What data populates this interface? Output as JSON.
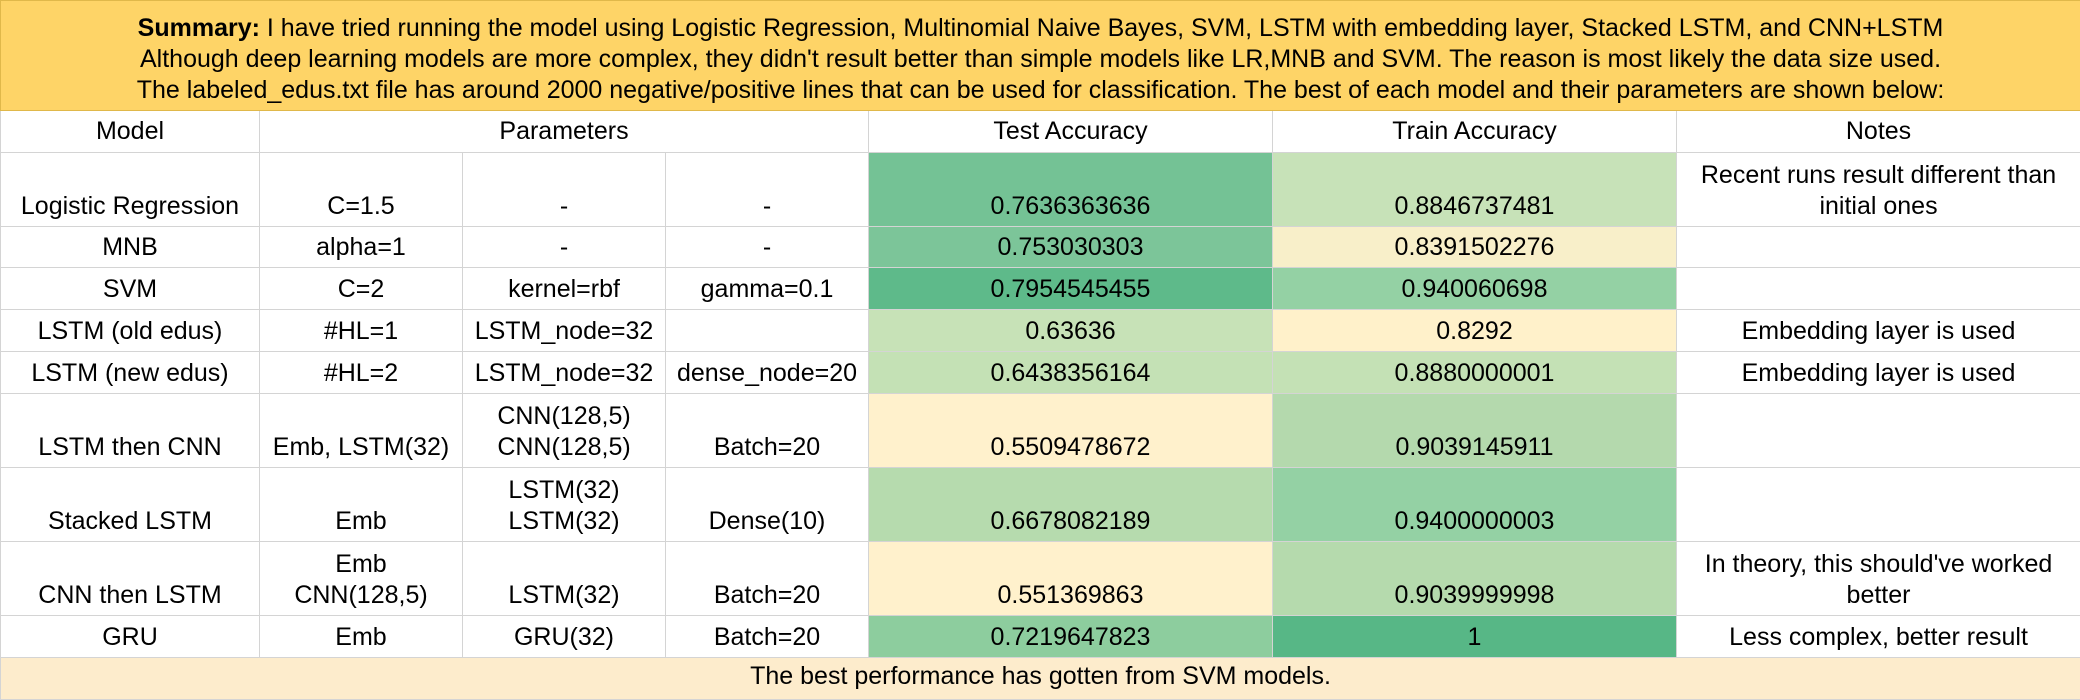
{
  "summary": {
    "label": "Summary:",
    "line1": "I have tried running the model using Logistic Regression, Multinomial Naive Bayes, SVM, LSTM with embedding layer, Stacked LSTM, and CNN+LSTM",
    "line2": "Although deep learning models are more complex, they didn't result better than simple models like LR,MNB and SVM. The reason is most likely the data size used.",
    "line3": "The labeled_edus.txt file has around 2000 negative/positive lines that can be used for classification. The best of each model and their parameters are shown below:"
  },
  "headers": {
    "model": "Model",
    "parameters": "Parameters",
    "test_accuracy": "Test Accuracy",
    "train_accuracy": "Train Accuracy",
    "notes": "Notes"
  },
  "rows": [
    {
      "model": "Logistic Regression",
      "p1": [
        "C=1.5"
      ],
      "p2": [
        "-"
      ],
      "p3": [
        "-"
      ],
      "test": "0.7636363636",
      "train": "0.8846737481",
      "notes": "Recent runs result different than initial ones",
      "test_color": "#74c295",
      "train_color": "#c7e2b8",
      "h": 74
    },
    {
      "model": "MNB",
      "p1": [
        "alpha=1"
      ],
      "p2": [
        "-"
      ],
      "p3": [
        "-"
      ],
      "test": "0.753030303",
      "train": "0.8391502276",
      "notes": "",
      "test_color": "#7cc599",
      "train_color": "#f8efc9",
      "h": 41
    },
    {
      "model": "SVM",
      "p1": [
        "C=2"
      ],
      "p2": [
        "kernel=rbf"
      ],
      "p3": [
        "gamma=0.1"
      ],
      "test": "0.7954545455",
      "train": "0.940060698",
      "notes": "",
      "test_color": "#5eba8a",
      "train_color": "#94d1a4",
      "h": 42
    },
    {
      "model": "LSTM (old edus)",
      "p1": [
        "#HL=1"
      ],
      "p2": [
        "LSTM_node=32"
      ],
      "p3": [
        ""
      ],
      "test": "0.63636",
      "train": "0.8292",
      "notes": "Embedding layer is used",
      "test_color": "#c7e2b7",
      "train_color": "#fff1ca",
      "h": 42
    },
    {
      "model": "LSTM (new edus)",
      "p1": [
        "#HL=2"
      ],
      "p2": [
        "LSTM_node=32"
      ],
      "p3": [
        "dense_node=20"
      ],
      "test": "0.6438356164",
      "train": "0.8880000001",
      "notes": "Embedding layer is used",
      "test_color": "#c4e1b5",
      "train_color": "#c4e1b5",
      "h": 42
    },
    {
      "model": "LSTM then CNN",
      "p1": [
        "Emb, LSTM(32)"
      ],
      "p2": [
        "CNN(128,5)",
        "CNN(128,5)"
      ],
      "p3": [
        "Batch=20"
      ],
      "test": "0.5509478672",
      "train": "0.9039145911",
      "notes": "",
      "test_color": "#fff1cc",
      "train_color": "#b4d9ad",
      "h": 74
    },
    {
      "model": "Stacked LSTM",
      "p1": [
        "Emb"
      ],
      "p2": [
        "LSTM(32)",
        "LSTM(32)"
      ],
      "p3": [
        "Dense(10)"
      ],
      "test": "0.6678082189",
      "train": "0.9400000003",
      "notes": "",
      "test_color": "#b6dbae",
      "train_color": "#94d1a4",
      "h": 74
    },
    {
      "model": "CNN then LSTM",
      "p1": [
        "Emb",
        "CNN(128,5)"
      ],
      "p2": [
        "LSTM(32)"
      ],
      "p3": [
        "Batch=20"
      ],
      "test": "0.551369863",
      "train": "0.9039999998",
      "notes": "In theory, this should've worked better",
      "test_color": "#fff1cc",
      "train_color": "#b5daad",
      "h": 74
    },
    {
      "model": "GRU",
      "p1": [
        "Emb"
      ],
      "p2": [
        "GRU(32)"
      ],
      "p3": [
        "Batch=20"
      ],
      "test": "0.7219647823",
      "train": "1",
      "notes": "Less complex, better result",
      "test_color": "#8dcd9e",
      "train_color": "#57b786",
      "h": 42
    }
  ],
  "footer": {
    "text": "The best performance has gotten from SVM models."
  }
}
